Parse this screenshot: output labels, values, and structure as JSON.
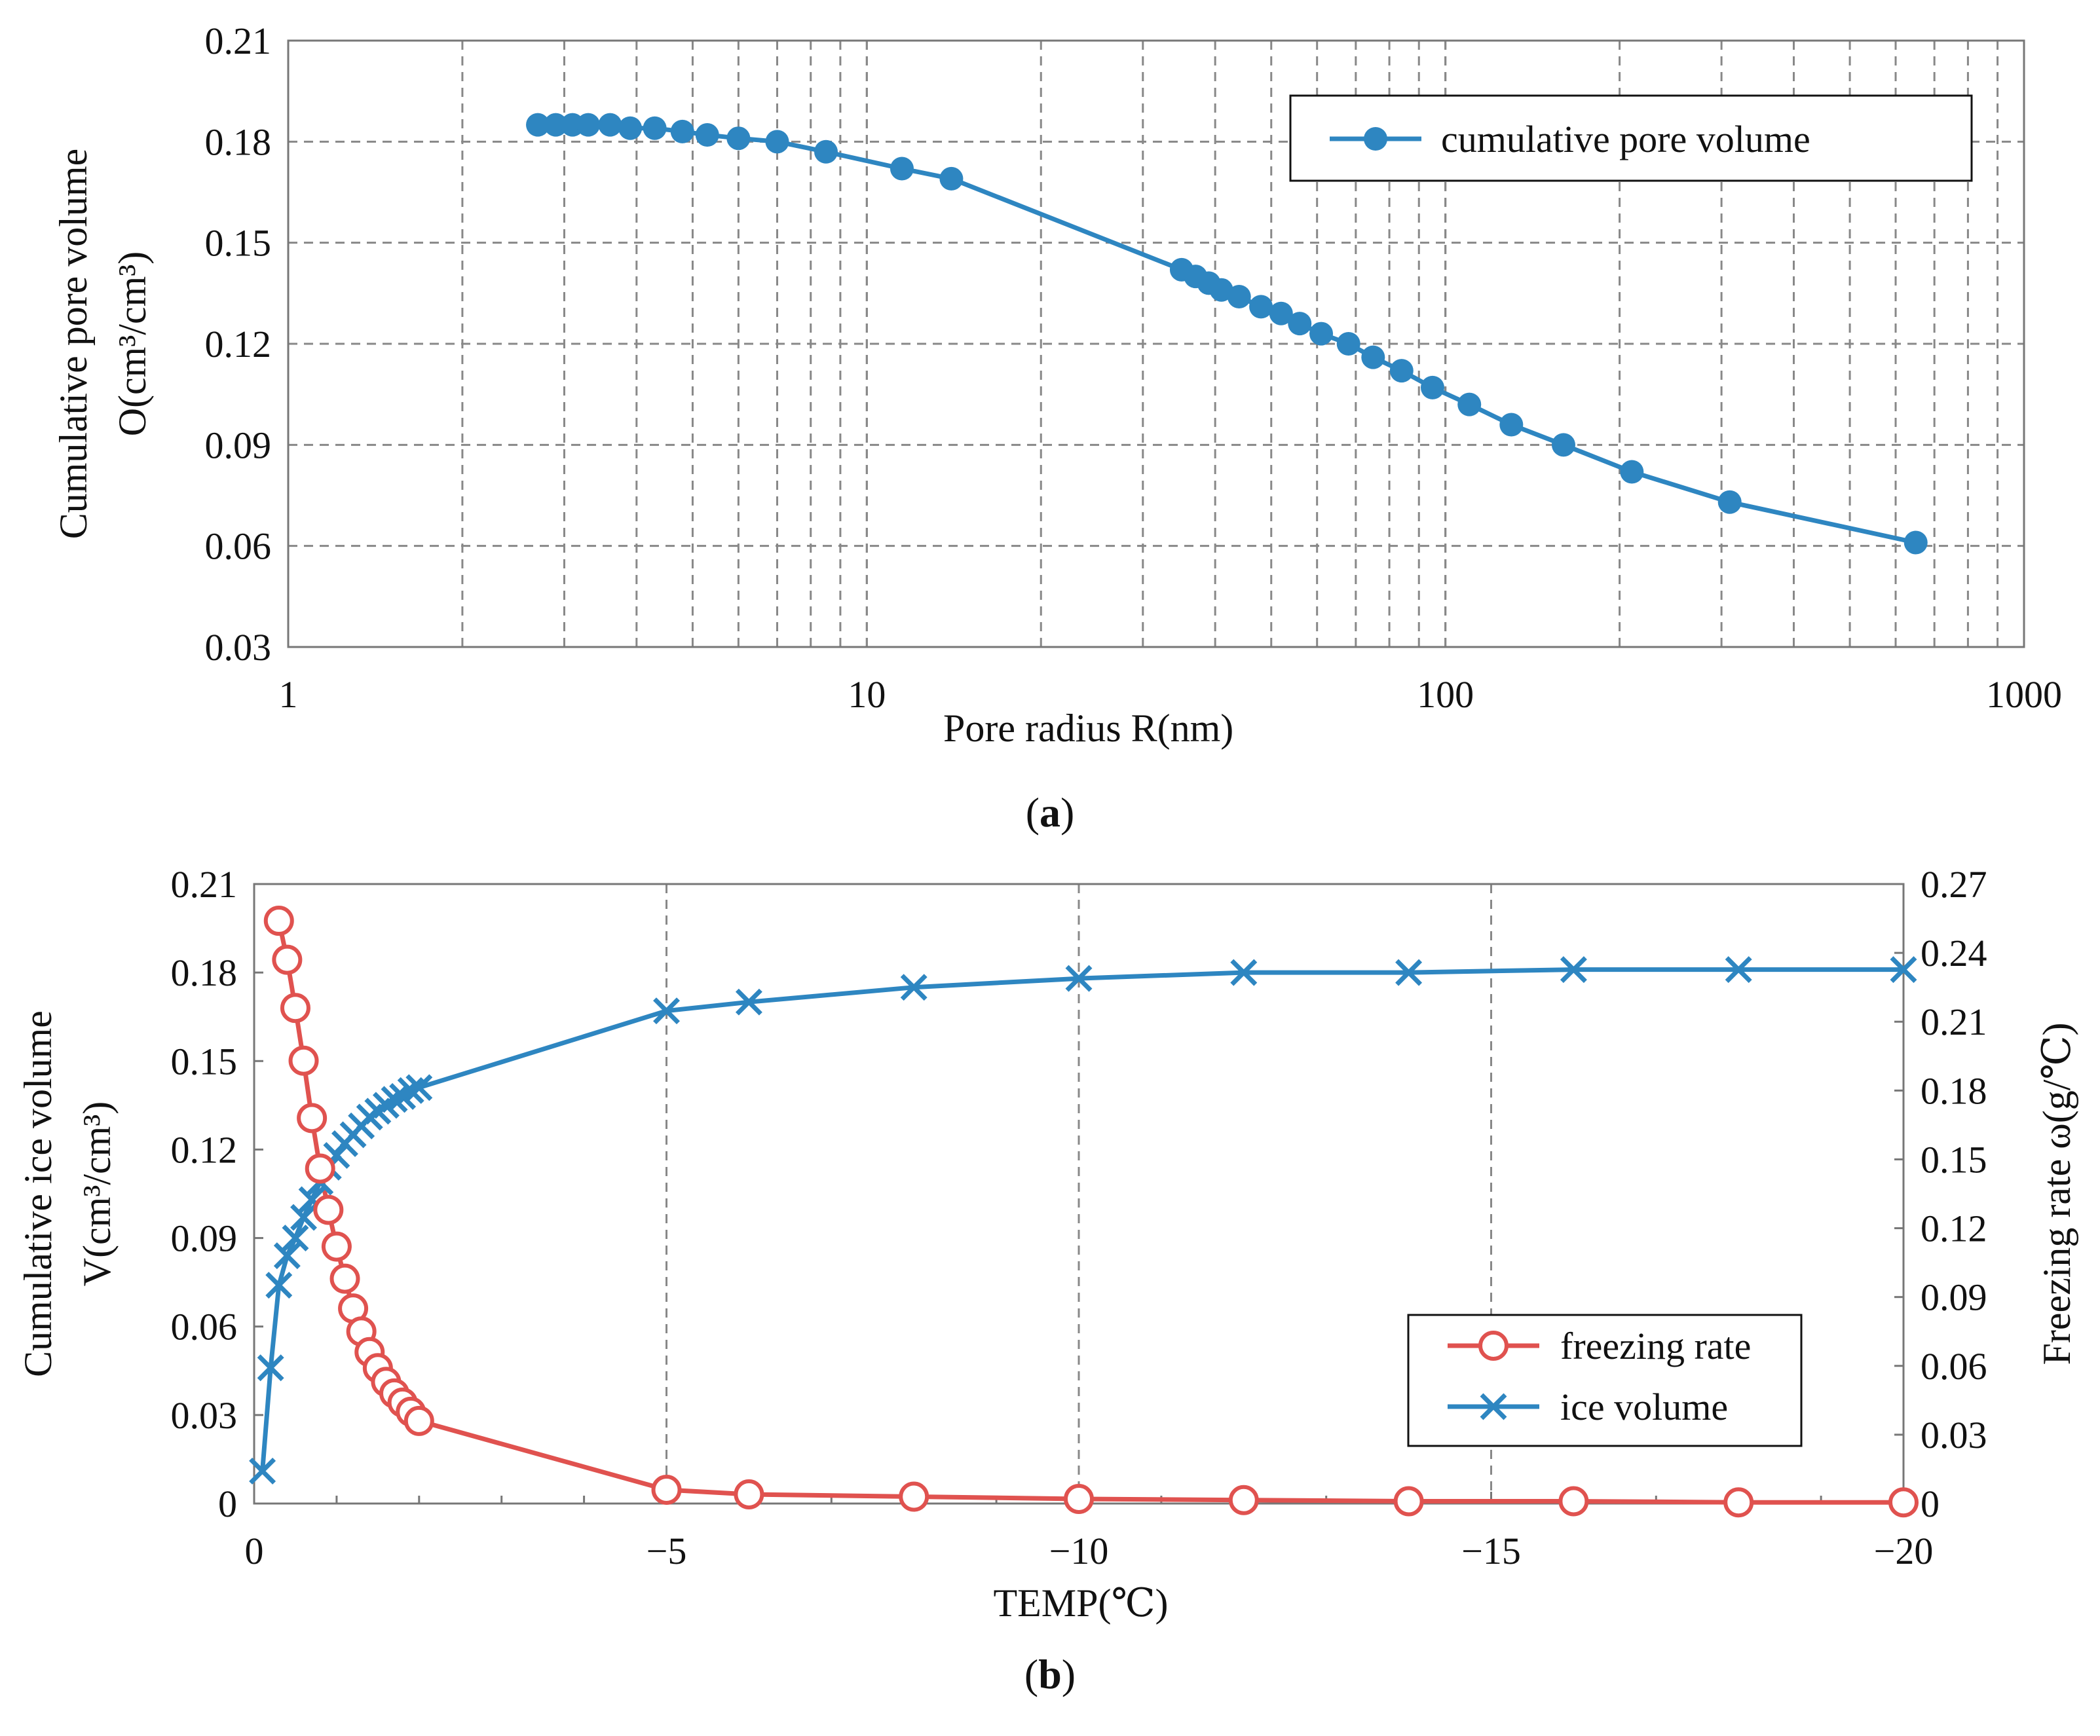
{
  "colors": {
    "blue": "#2E86C1",
    "red": "#E0524F",
    "grid": "#888888",
    "axis": "#777777"
  },
  "chart_data": [
    {
      "type": "line",
      "panel_label": "a",
      "xscale": "log",
      "xlim": [
        1,
        1000
      ],
      "ylim": [
        0.03,
        0.21
      ],
      "xticks": [
        "1",
        "10",
        "100",
        "1000"
      ],
      "yticks": [
        "0.03",
        "0.06",
        "0.09",
        "0.12",
        "0.15",
        "0.18",
        "0.21"
      ],
      "xlabel": "Pore radius R(nm)",
      "ylabel_line1": "Cumulative  pore volume",
      "ylabel_line2": "O(cm³/cm³)",
      "grid": true,
      "legend_position": "top-right",
      "series": [
        {
          "name": "cumulative pore volume",
          "x": [
            2.7,
            2.9,
            3.1,
            3.3,
            3.6,
            3.9,
            4.3,
            4.8,
            5.3,
            6.0,
            7.0,
            8.5,
            11.5,
            14.0,
            35.0,
            37.0,
            39.0,
            41.0,
            44.0,
            48.0,
            52.0,
            56.0,
            61.0,
            68.0,
            75.0,
            84.0,
            95.0,
            110.0,
            130.0,
            160.0,
            210.0,
            310.0,
            650.0
          ],
          "y": [
            0.185,
            0.185,
            0.185,
            0.185,
            0.185,
            0.184,
            0.184,
            0.183,
            0.182,
            0.181,
            0.18,
            0.177,
            0.172,
            0.169,
            0.142,
            0.14,
            0.138,
            0.136,
            0.134,
            0.131,
            0.129,
            0.126,
            0.123,
            0.12,
            0.116,
            0.112,
            0.107,
            0.102,
            0.096,
            0.09,
            0.082,
            0.073,
            0.061
          ]
        }
      ]
    },
    {
      "type": "line",
      "panel_label": "b",
      "xlim": [
        0,
        -20
      ],
      "ylim_left": [
        0,
        0.21
      ],
      "ylim_right": [
        0,
        0.27
      ],
      "xticks": [
        "0",
        "−5",
        "−10",
        "−15",
        "−20"
      ],
      "yticks_left": [
        "0",
        "0.03",
        "0.06",
        "0.09",
        "0.12",
        "0.15",
        "0.18",
        "0.21"
      ],
      "yticks_right": [
        "0",
        "0.03",
        "0.06",
        "0.09",
        "0.12",
        "0.15",
        "0.18",
        "0.21",
        "0.24",
        "0.27"
      ],
      "xlabel": "TEMP(℃)",
      "ylabel_left_line1": "Cumulative  ice volume",
      "ylabel_left_line2": "V(cm³/cm³)",
      "ylabel_right": "Freezing rate ω(g/℃)",
      "grid": "vertical dashed at -5, -10, -15",
      "legend_position": "bottom-right",
      "series": [
        {
          "name": "freezing rate",
          "axis": "right",
          "marker": "open-circle",
          "x": [
            -0.3,
            -0.4,
            -0.5,
            -0.6,
            -0.7,
            -0.8,
            -0.9,
            -1.0,
            -1.1,
            -1.2,
            -1.3,
            -1.4,
            -1.5,
            -1.6,
            -1.7,
            -1.8,
            -1.9,
            -2.0,
            -5.0,
            -6.0,
            -8.0,
            -10.0,
            -12.0,
            -14.0,
            -16.0,
            -18.0,
            -20.0
          ],
          "y": [
            0.254,
            0.237,
            0.216,
            0.193,
            0.168,
            0.146,
            0.128,
            0.112,
            0.098,
            0.085,
            0.075,
            0.066,
            0.059,
            0.053,
            0.048,
            0.044,
            0.04,
            0.036,
            0.006,
            0.004,
            0.003,
            0.002,
            0.0015,
            0.001,
            0.001,
            0.0005,
            0.0005
          ]
        },
        {
          "name": "ice volume",
          "axis": "left",
          "marker": "x",
          "x": [
            -0.1,
            -0.2,
            -0.3,
            -0.4,
            -0.5,
            -0.6,
            -0.7,
            -0.8,
            -0.9,
            -1.0,
            -1.1,
            -1.2,
            -1.3,
            -1.4,
            -1.5,
            -1.6,
            -1.7,
            -1.8,
            -1.9,
            -2.0,
            -5.0,
            -6.0,
            -8.0,
            -10.0,
            -12.0,
            -14.0,
            -16.0,
            -18.0,
            -20.0
          ],
          "y": [
            0.011,
            0.046,
            0.074,
            0.084,
            0.09,
            0.097,
            0.103,
            0.109,
            0.114,
            0.118,
            0.122,
            0.125,
            0.128,
            0.131,
            0.133,
            0.135,
            0.137,
            0.138,
            0.14,
            0.141,
            0.167,
            0.17,
            0.175,
            0.178,
            0.18,
            0.18,
            0.181,
            0.181,
            0.181
          ]
        }
      ]
    }
  ]
}
